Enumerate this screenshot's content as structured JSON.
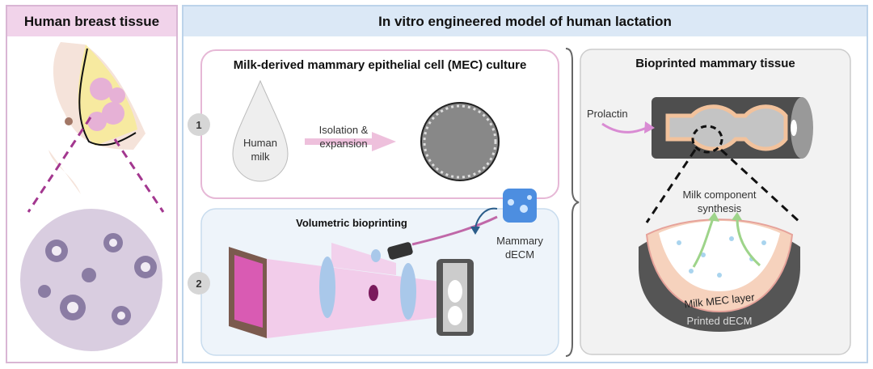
{
  "left_panel": {
    "title": "Human breast tissue"
  },
  "right_panel": {
    "title": "In vitro engineered model of human lactation",
    "step1": {
      "number": "1",
      "title": "Milk-derived mammary epithelial cell (MEC) culture",
      "drop_label": "Human milk",
      "arrow_label": "Isolation & expansion"
    },
    "step2": {
      "number": "2",
      "title": "Volumetric bioprinting",
      "material_label": "Mammary dECM"
    },
    "tissue": {
      "title": "Bioprinted mammary tissue",
      "stimulus": "Prolactin",
      "synthesis_label": "Milk component synthesis",
      "layer_label": "Milk MEC layer",
      "matrix_label": "Printed dECM"
    }
  },
  "colors": {
    "left_header": "#f1d3ea",
    "right_header": "#dbe8f6",
    "step1_border": "#e6b8d6",
    "step2_fill": "#eef4fa",
    "tissue_fill": "#f2f2f2"
  }
}
